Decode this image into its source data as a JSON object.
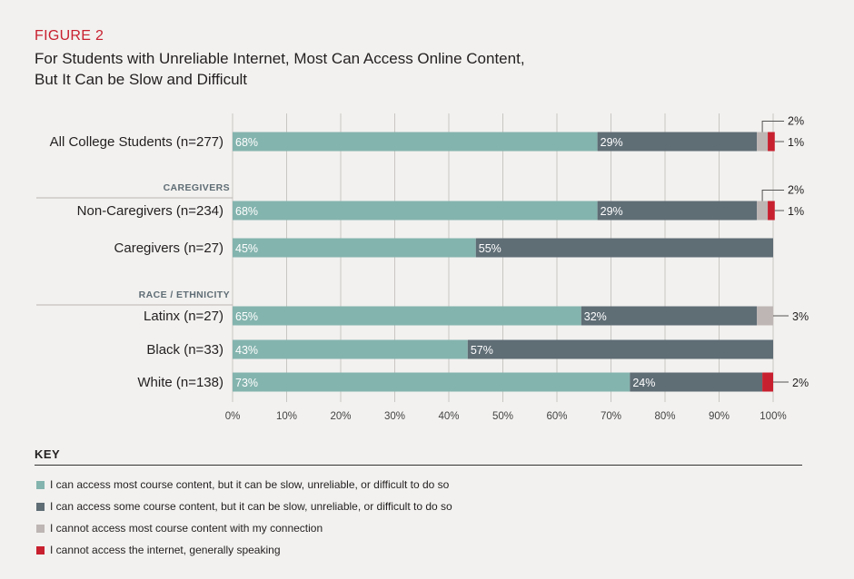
{
  "figure_label": "FIGURE 2",
  "title_lines": [
    "For Students with Unreliable Internet, Most Can Access Online Content,",
    "But It Can be Slow and Difficult"
  ],
  "colors": {
    "most": "#84b4ae",
    "some": "#5f6d75",
    "cannot_most": "#bdb6b4",
    "no_internet": "#c8202f",
    "grid": "#c9c6c3",
    "background": "#f2f1ef"
  },
  "key": {
    "title": "KEY",
    "items": [
      {
        "color": "#84b4ae",
        "label": "I can access most course content, but it can be slow, unreliable, or difficult to do so"
      },
      {
        "color": "#5f6d75",
        "label": "I can access some course content, but it can be slow, unreliable, or difficult to do so"
      },
      {
        "color": "#bdb6b4",
        "label": "I cannot access most course content with my connection"
      },
      {
        "color": "#c8202f",
        "label": "I cannot access the internet, generally speaking"
      }
    ]
  },
  "chart_data": {
    "type": "bar",
    "orientation": "horizontal",
    "stacked": true,
    "xlim": [
      0,
      100
    ],
    "x_ticks": [
      "0%",
      "10%",
      "20%",
      "30%",
      "40%",
      "50%",
      "60%",
      "70%",
      "80%",
      "90%",
      "100%"
    ],
    "series_order": [
      "I can access most course content, but it can be slow, unreliable, or difficult to do so",
      "I can access some course content, but it can be slow, unreliable, or difficult to do so",
      "I cannot access most course content with my connection",
      "I cannot access the internet, generally speaking"
    ],
    "groups": [
      {
        "heading": "",
        "rows": [
          {
            "label": "All College Students (n=277)",
            "values": [
              67.5,
              29.5,
              2,
              1.3
            ],
            "labels": [
              "68%",
              "29%",
              "2%",
              "1%"
            ]
          }
        ]
      },
      {
        "heading": "CAREGIVERS",
        "rows": [
          {
            "label": "Non-Caregivers (n=234)",
            "values": [
              67.5,
              29.5,
              2,
              1.3
            ],
            "labels": [
              "68%",
              "29%",
              "2%",
              "1%"
            ]
          },
          {
            "label": "Caregivers (n=27)",
            "values": [
              45,
              55,
              0,
              0
            ],
            "labels": [
              "45%",
              "55%",
              "",
              ""
            ]
          }
        ]
      },
      {
        "heading": "RACE / ETHNICITY",
        "rows": [
          {
            "label": "Latinx (n=27)",
            "values": [
              64.5,
              32.5,
              3,
              0
            ],
            "labels": [
              "65%",
              "32%",
              "3%",
              ""
            ]
          },
          {
            "label": "Black (n=33)",
            "values": [
              43.5,
              56.5,
              0,
              0
            ],
            "labels": [
              "43%",
              "57%",
              "",
              ""
            ]
          },
          {
            "label": "White (n=138)",
            "values": [
              73.5,
              24.5,
              0,
              2
            ],
            "labels": [
              "73%",
              "24%",
              "",
              "2%"
            ]
          }
        ]
      }
    ]
  }
}
